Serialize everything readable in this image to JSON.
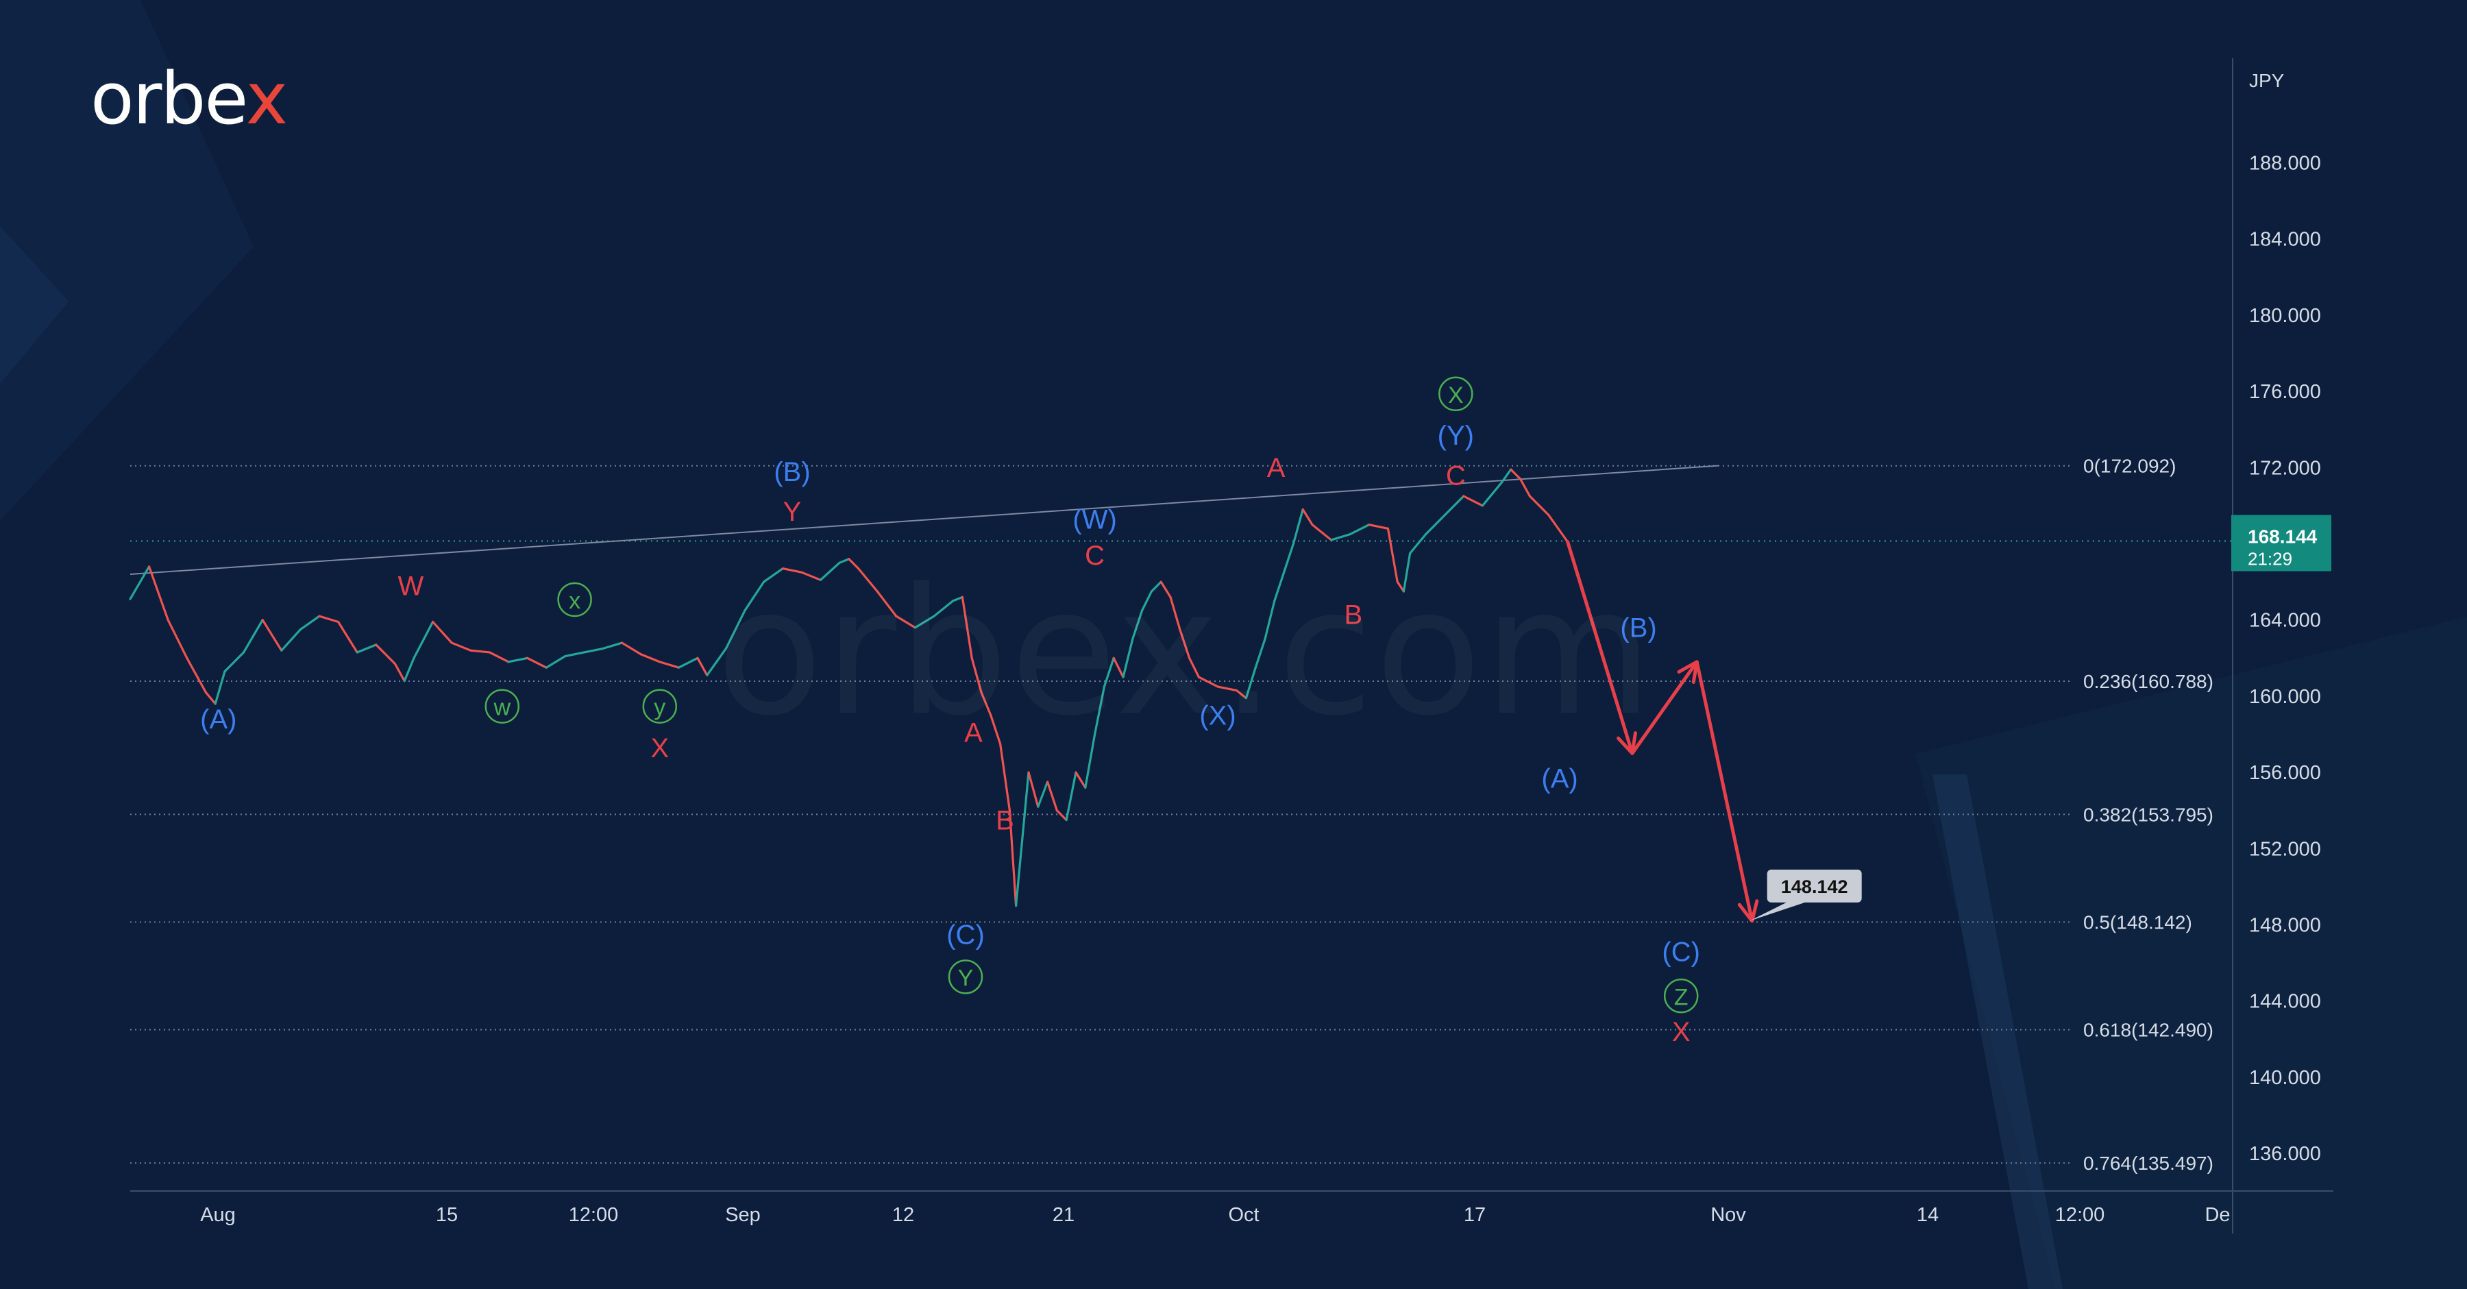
{
  "brand": {
    "logo_main": "orbe",
    "logo_x": "x",
    "watermark": "orbex.com"
  },
  "chart_data": {
    "type": "line",
    "currency": "JPY",
    "ylim": [
      133.5,
      191.5
    ],
    "y_ticks": [
      188,
      184,
      180,
      176,
      172,
      168,
      164,
      160,
      156,
      152,
      148,
      144,
      140,
      136
    ],
    "y_tick_labels": [
      "188.000",
      "184.000",
      "180.000",
      "176.000",
      "172.000",
      "168.000",
      "164.000",
      "160.000",
      "156.000",
      "152.000",
      "148.000",
      "144.000",
      "140.000",
      "136.000"
    ],
    "x_tick_labels": [
      "Aug",
      "15",
      "12:00",
      "Sep",
      "12",
      "21",
      "Oct",
      "17",
      "Nov",
      "14",
      "12:00",
      "De"
    ],
    "current_price": {
      "value": 168.144,
      "label": "168.144",
      "countdown": "21:29"
    },
    "target_label": {
      "value": 148.142,
      "label": "148.142"
    },
    "fib_levels": [
      {
        "value": 172.092,
        "label": "0(172.092)"
      },
      {
        "value": 160.788,
        "label": "0.236(160.788)"
      },
      {
        "value": 153.795,
        "label": "0.382(153.795)"
      },
      {
        "value": 148.142,
        "label": "0.5(148.142)"
      },
      {
        "value": 142.49,
        "label": "0.618(142.490)"
      },
      {
        "value": 135.497,
        "label": "0.764(135.497)"
      }
    ],
    "trendline": {
      "from": {
        "t": 0,
        "v": 166.4
      },
      "to": {
        "t": 1008,
        "v": 172.1
      }
    },
    "price_path": [
      [
        0,
        165.1
      ],
      [
        12,
        166.8
      ],
      [
        24,
        164.0
      ],
      [
        36,
        162.0
      ],
      [
        48,
        160.2
      ],
      [
        54,
        159.6
      ],
      [
        60,
        161.3
      ],
      [
        72,
        162.3
      ],
      [
        84,
        164.0
      ],
      [
        96,
        162.4
      ],
      [
        108,
        163.5
      ],
      [
        120,
        164.2
      ],
      [
        132,
        163.9
      ],
      [
        144,
        162.3
      ],
      [
        156,
        162.7
      ],
      [
        168,
        161.7
      ],
      [
        174,
        160.8
      ],
      [
        180,
        162.0
      ],
      [
        192,
        163.9
      ],
      [
        204,
        162.8
      ],
      [
        216,
        162.4
      ],
      [
        228,
        162.3
      ],
      [
        240,
        161.8
      ],
      [
        252,
        162.0
      ],
      [
        264,
        161.5
      ],
      [
        276,
        162.1
      ],
      [
        288,
        162.3
      ],
      [
        300,
        162.5
      ],
      [
        312,
        162.8
      ],
      [
        324,
        162.2
      ],
      [
        336,
        161.8
      ],
      [
        348,
        161.5
      ],
      [
        360,
        162.0
      ],
      [
        366,
        161.1
      ],
      [
        378,
        162.5
      ],
      [
        390,
        164.5
      ],
      [
        402,
        166.0
      ],
      [
        414,
        166.7
      ],
      [
        426,
        166.5
      ],
      [
        438,
        166.1
      ],
      [
        450,
        167.0
      ],
      [
        456,
        167.2
      ],
      [
        462,
        166.7
      ],
      [
        474,
        165.5
      ],
      [
        486,
        164.2
      ],
      [
        498,
        163.6
      ],
      [
        510,
        164.2
      ],
      [
        522,
        165.0
      ],
      [
        528,
        165.2
      ],
      [
        534,
        162.0
      ],
      [
        540,
        160.2
      ],
      [
        546,
        159.0
      ],
      [
        552,
        157.5
      ],
      [
        558,
        154.0
      ],
      [
        562,
        149.0
      ],
      [
        566,
        152.5
      ],
      [
        570,
        156.0
      ],
      [
        576,
        154.2
      ],
      [
        582,
        155.5
      ],
      [
        588,
        154.0
      ],
      [
        594,
        153.5
      ],
      [
        600,
        156.0
      ],
      [
        606,
        155.2
      ],
      [
        612,
        158.0
      ],
      [
        618,
        160.5
      ],
      [
        624,
        162.0
      ],
      [
        630,
        161.0
      ],
      [
        636,
        163.0
      ],
      [
        642,
        164.5
      ],
      [
        648,
        165.5
      ],
      [
        654,
        166.0
      ],
      [
        660,
        165.2
      ],
      [
        666,
        163.5
      ],
      [
        672,
        162.0
      ],
      [
        678,
        161.0
      ],
      [
        690,
        160.5
      ],
      [
        702,
        160.3
      ],
      [
        708,
        159.9
      ],
      [
        714,
        161.5
      ],
      [
        720,
        163.0
      ],
      [
        726,
        165.0
      ],
      [
        732,
        166.5
      ],
      [
        738,
        168.0
      ],
      [
        744,
        169.8
      ],
      [
        750,
        169.0
      ],
      [
        762,
        168.2
      ],
      [
        774,
        168.5
      ],
      [
        786,
        169.0
      ],
      [
        798,
        168.8
      ],
      [
        804,
        166.0
      ],
      [
        808,
        165.5
      ],
      [
        812,
        167.5
      ],
      [
        822,
        168.5
      ],
      [
        834,
        169.5
      ],
      [
        846,
        170.5
      ],
      [
        858,
        170.0
      ],
      [
        870,
        171.2
      ],
      [
        876,
        171.9
      ],
      [
        882,
        171.4
      ],
      [
        888,
        170.5
      ],
      [
        894,
        170.0
      ],
      [
        900,
        169.5
      ],
      [
        906,
        168.8
      ],
      [
        912,
        168.1
      ]
    ],
    "forecast_path": [
      [
        912,
        168.1
      ],
      [
        953,
        157.0
      ],
      [
        994,
        161.8
      ],
      [
        1029,
        148.2
      ]
    ],
    "wave_labels": [
      {
        "text": "(A)",
        "t": 56,
        "v": 158.3,
        "color": "blue"
      },
      {
        "text": "W",
        "t": 178,
        "v": 165.3,
        "color": "red"
      },
      {
        "text": "w",
        "t": 236,
        "v": 159.0,
        "color": "green",
        "circle": true
      },
      {
        "text": "x",
        "t": 282,
        "v": 164.6,
        "color": "green",
        "circle": true
      },
      {
        "text": "y",
        "t": 336,
        "v": 159.0,
        "color": "green",
        "circle": true
      },
      {
        "text": "X",
        "t": 336,
        "v": 156.8,
        "color": "red"
      },
      {
        "text": "(B)",
        "t": 420,
        "v": 171.3,
        "color": "blue"
      },
      {
        "text": "Y",
        "t": 420,
        "v": 169.2,
        "color": "red"
      },
      {
        "text": "A",
        "t": 535,
        "v": 157.6,
        "color": "red"
      },
      {
        "text": "B",
        "t": 555,
        "v": 153.0,
        "color": "red"
      },
      {
        "text": "(C)",
        "t": 530,
        "v": 147.0,
        "color": "blue"
      },
      {
        "text": "Y",
        "t": 530,
        "v": 144.8,
        "color": "green",
        "circle": true
      },
      {
        "text": "(W)",
        "t": 612,
        "v": 168.8,
        "color": "blue"
      },
      {
        "text": "C",
        "t": 612,
        "v": 166.9,
        "color": "red"
      },
      {
        "text": "(X)",
        "t": 690,
        "v": 158.5,
        "color": "blue"
      },
      {
        "text": "A",
        "t": 727,
        "v": 171.5,
        "color": "red"
      },
      {
        "text": "B",
        "t": 776,
        "v": 163.8,
        "color": "red"
      },
      {
        "text": "X",
        "t": 841,
        "v": 175.4,
        "color": "green",
        "circle": true
      },
      {
        "text": "(Y)",
        "t": 841,
        "v": 173.2,
        "color": "blue"
      },
      {
        "text": "C",
        "t": 841,
        "v": 171.1,
        "color": "red"
      },
      {
        "text": "(A)",
        "t": 907,
        "v": 155.2,
        "color": "blue"
      },
      {
        "text": "(B)",
        "t": 957,
        "v": 163.1,
        "color": "blue"
      },
      {
        "text": "(C)",
        "t": 984,
        "v": 146.1,
        "color": "blue"
      },
      {
        "text": "Z",
        "t": 984,
        "v": 143.8,
        "color": "green",
        "circle": true
      },
      {
        "text": "X",
        "t": 984,
        "v": 141.9,
        "color": "red"
      }
    ]
  }
}
